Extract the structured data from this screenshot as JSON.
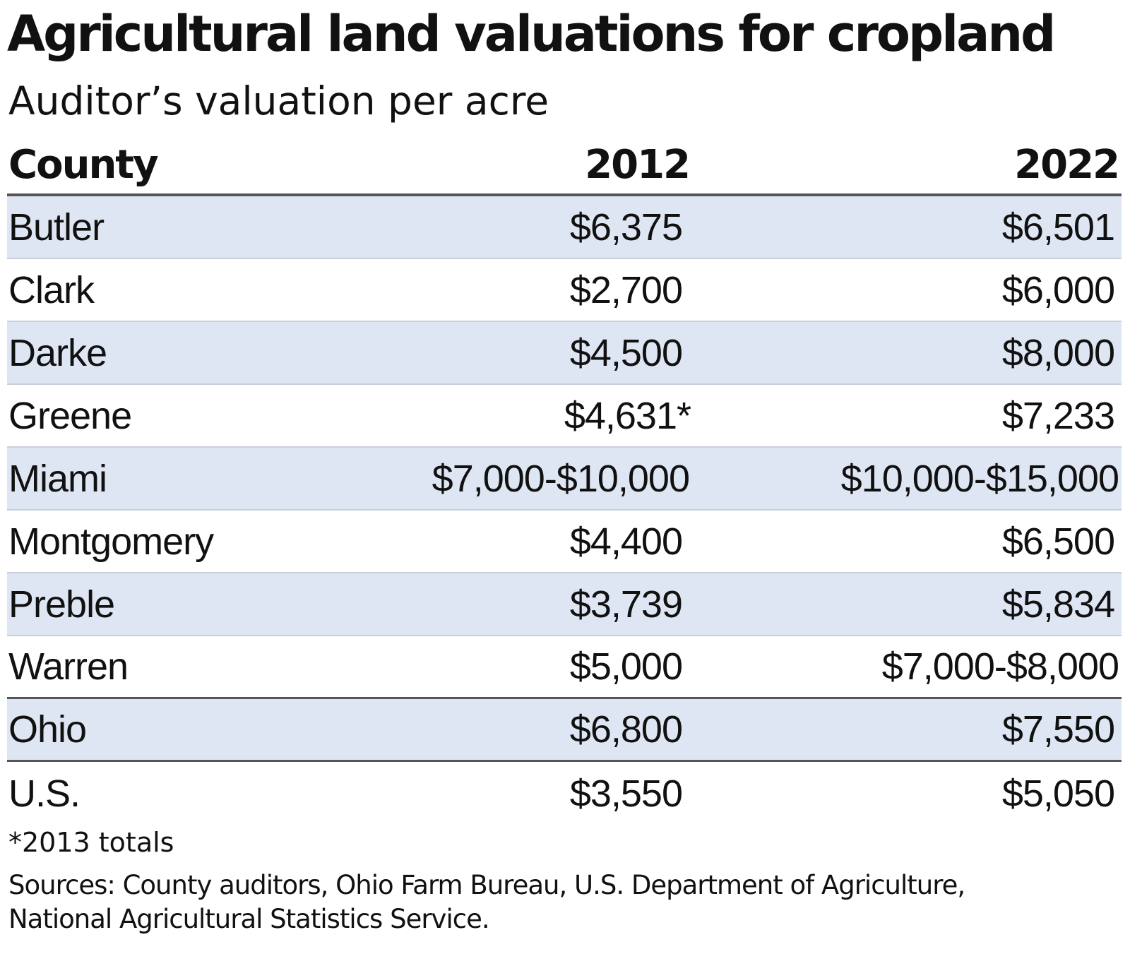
{
  "chart_data": {
    "type": "table",
    "title": "Agricultural land valuations for cropland",
    "subtitle": "Auditor’s valuation per acre",
    "columns": [
      "County",
      "2012",
      "2022"
    ],
    "rows": [
      {
        "county": "Butler",
        "v2012": "$6,375",
        "v2022": "$6,501"
      },
      {
        "county": "Clark",
        "v2012": "$2,700",
        "v2022": "$6,000"
      },
      {
        "county": "Darke",
        "v2012": "$4,500",
        "v2022": "$8,000"
      },
      {
        "county": "Greene",
        "v2012": "$4,631*",
        "v2022": "$7,233"
      },
      {
        "county": "Miami",
        "v2012": "$7,000-$10,000",
        "v2022": "$10,000-$15,000"
      },
      {
        "county": "Montgomery",
        "v2012": "$4,400",
        "v2022": "$6,500"
      },
      {
        "county": "Preble",
        "v2012": "$3,739",
        "v2022": "$5,834"
      },
      {
        "county": "Warren",
        "v2012": "$5,000",
        "v2022": "$7,000-$8,000"
      },
      {
        "county": "Ohio",
        "v2012": "$6,800",
        "v2022": "$7,550"
      },
      {
        "county": "U.S.",
        "v2012": "$3,550",
        "v2022": "$5,050"
      }
    ],
    "footnote": "*2013 totals",
    "sources": [
      "Sources: County auditors, Ohio Farm Bureau, U.S. Department of Agriculture,",
      "National Agricultural Statistics Service."
    ],
    "colors": {
      "row_shade": "#dfe6f3",
      "rule": "#555555",
      "text": "#111111"
    }
  }
}
